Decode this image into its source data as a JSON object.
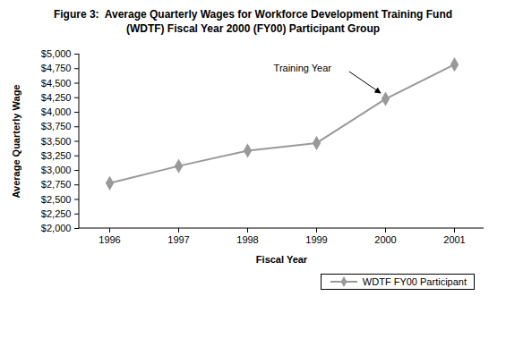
{
  "chart_data": {
    "type": "line",
    "title": "Figure 3:  Average Quarterly Wages for Workforce Development Training Fund\n(WDTF) Fiscal Year 2000 (FY00) Participant Group",
    "x_label": "Fiscal Year",
    "y_label": "Average Quarterly Wage",
    "categories": [
      "1996",
      "1997",
      "1998",
      "1999",
      "2000",
      "2001"
    ],
    "series": [
      {
        "name": "WDTF FY00 Participant",
        "color": "#999999",
        "marker": "diamond",
        "line_style": "solid",
        "values": [
          2780,
          3075,
          3340,
          3470,
          4230,
          4820
        ]
      }
    ],
    "ylim": [
      2000,
      5000
    ],
    "yticks": [
      {
        "value": 2000,
        "label": "$2,000"
      },
      {
        "value": 2250,
        "label": "$2,250"
      },
      {
        "value": 2500,
        "label": "$2,500"
      },
      {
        "value": 2750,
        "label": "$2,750"
      },
      {
        "value": 3000,
        "label": "$3,000"
      },
      {
        "value": 3250,
        "label": "$3,250"
      },
      {
        "value": 3500,
        "label": "$3,500"
      },
      {
        "value": 3750,
        "label": "$3,750"
      },
      {
        "value": 4000,
        "label": "$4,000"
      },
      {
        "value": 4250,
        "label": "$4,250"
      },
      {
        "value": 4500,
        "label": "$4,500"
      },
      {
        "value": 4750,
        "label": "$4,750"
      },
      {
        "value": 5000,
        "label": "$5,000"
      }
    ],
    "annotations": [
      {
        "text": "Training Year",
        "x": "2000"
      }
    ],
    "grid": false,
    "legend": "bottom-right"
  }
}
